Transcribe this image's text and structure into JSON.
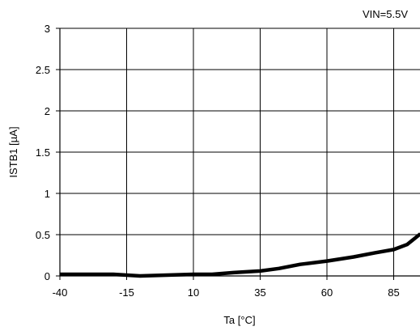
{
  "chart_data": {
    "type": "line",
    "title": "",
    "annotation": "VIN=5.5V",
    "xlabel": "Ta [°C]",
    "ylabel": "ISTB1 [µA]",
    "xlim": [
      -40,
      95
    ],
    "ylim": [
      0,
      3
    ],
    "x_ticks": [
      -40,
      -15,
      10,
      35,
      60,
      85
    ],
    "x_tick_labels": [
      "-40",
      "-15",
      "10",
      "35",
      "60",
      "85"
    ],
    "y_ticks": [
      0,
      0.5,
      1,
      1.5,
      2,
      2.5,
      3
    ],
    "y_tick_labels": [
      "0",
      "0.5",
      "1",
      "1.5",
      "2",
      "2.5",
      "3"
    ],
    "grid": true,
    "series": [
      {
        "x": [
          -40,
          -20,
          -10,
          0,
          10,
          17,
          25,
          35,
          42,
          50,
          60,
          70,
          78,
          85,
          90,
          95
        ],
        "y": [
          0.02,
          0.02,
          0.0,
          0.01,
          0.02,
          0.02,
          0.04,
          0.06,
          0.09,
          0.14,
          0.18,
          0.23,
          0.28,
          0.32,
          0.38,
          0.51
        ],
        "color": "#000000"
      }
    ]
  }
}
